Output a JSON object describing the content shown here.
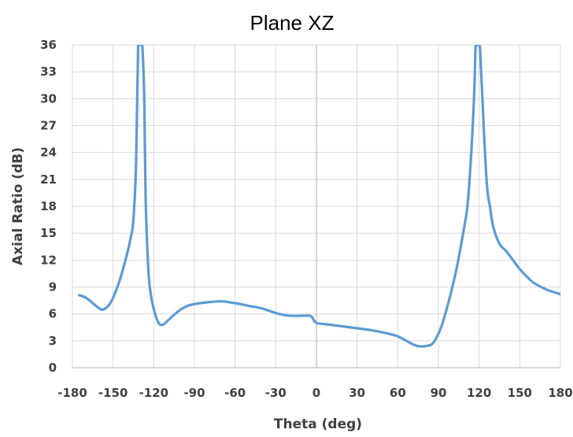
{
  "chart_data": {
    "type": "line",
    "title": "Plane XZ",
    "xlabel": "Theta (deg)",
    "ylabel": "Axial Ratio (dB)",
    "xlim": [
      -180,
      180
    ],
    "ylim": [
      0,
      36
    ],
    "x_ticks": [
      -180,
      -150,
      -120,
      -90,
      -60,
      -30,
      0,
      30,
      60,
      90,
      120,
      150,
      180
    ],
    "y_ticks": [
      0,
      3,
      6,
      9,
      12,
      15,
      18,
      21,
      24,
      27,
      30,
      33,
      36
    ],
    "x_tick_labels": [
      "-180",
      "-150",
      "-120",
      "-90",
      "-60",
      "-30",
      "0",
      "30",
      "60",
      "90",
      "120",
      "150",
      "180"
    ],
    "y_tick_labels": [
      "0",
      "3",
      "6",
      "9",
      "12",
      "15",
      "18",
      "21",
      "24",
      "27",
      "30",
      "33",
      "36"
    ],
    "grid": true,
    "legend": "none",
    "colors": {
      "series": "#5b9bd5"
    },
    "series": [
      {
        "x": [
          -175,
          -170,
          -165,
          -160,
          -157,
          -153,
          -150,
          -145,
          -140,
          -137,
          -135,
          -133,
          -131.5,
          -130,
          -128.5,
          -127,
          -126,
          -124,
          -122,
          -119,
          -116,
          -113,
          -110,
          -105,
          -100,
          -95,
          -90,
          -80,
          -70,
          -60,
          -50,
          -40,
          -30,
          -20,
          -10,
          -5,
          -3,
          0,
          10,
          20,
          30,
          40,
          50,
          60,
          70,
          75,
          80,
          85,
          88,
          92,
          96,
          100,
          104,
          108,
          111,
          113,
          115,
          116.5,
          117.5,
          118.5,
          119.5,
          120.5,
          121.5,
          122.5,
          124,
          126,
          128,
          130,
          133,
          136,
          140,
          145,
          150,
          155,
          160,
          170,
          180
        ],
        "y": [
          8.1,
          7.8,
          7.2,
          6.6,
          6.5,
          7.0,
          7.8,
          9.8,
          12.5,
          14.5,
          16.5,
          23,
          36,
          36,
          36,
          30,
          19,
          11,
          8,
          6,
          4.9,
          4.8,
          5.2,
          5.9,
          6.5,
          6.9,
          7.1,
          7.3,
          7.4,
          7.2,
          6.9,
          6.6,
          6.1,
          5.8,
          5.8,
          5.8,
          5.6,
          5.0,
          4.8,
          4.6,
          4.4,
          4.2,
          3.9,
          3.5,
          2.7,
          2.4,
          2.4,
          2.6,
          3.2,
          4.5,
          6.5,
          8.8,
          11.5,
          14.8,
          17.5,
          21,
          26,
          31,
          36,
          36,
          36,
          36,
          33,
          30,
          25,
          20,
          18,
          16,
          14.5,
          13.6,
          13,
          12,
          11,
          10.2,
          9.5,
          8.7,
          8.2
        ]
      }
    ]
  }
}
